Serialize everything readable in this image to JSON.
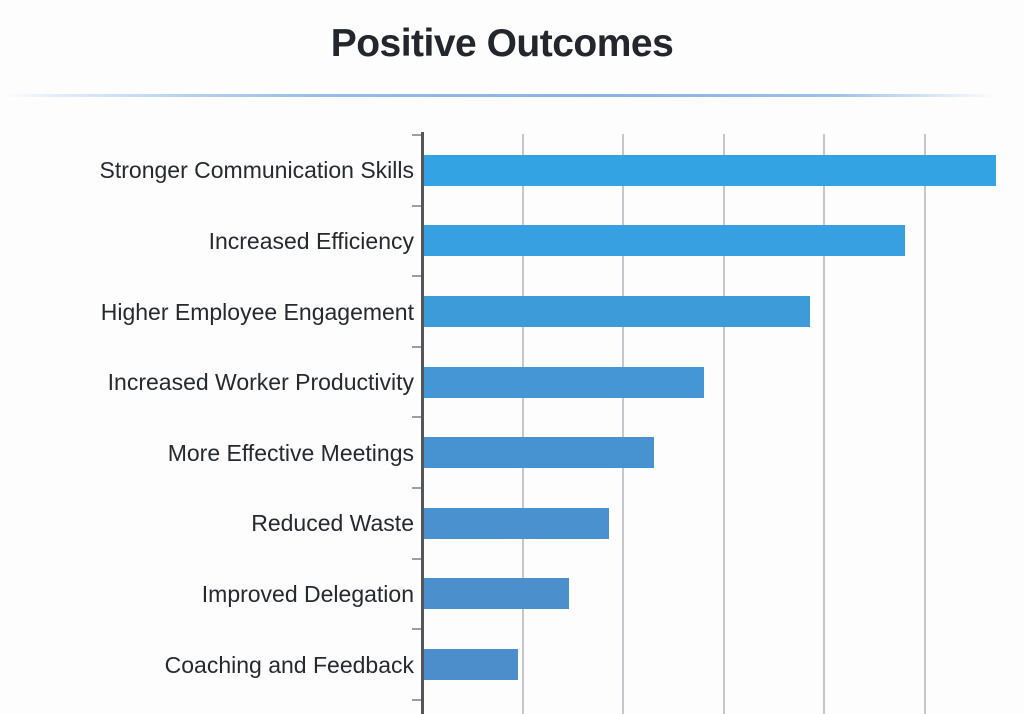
{
  "header": {
    "title": "Positive Outcomes"
  },
  "chart_data": {
    "type": "bar",
    "orientation": "horizontal",
    "title": "Positive Outcomes",
    "categories": [
      "Stronger Communication Skills",
      "Increased Efficiency",
      "Higher Employee Engagement",
      "Increased Worker Productivity",
      "More Effective Meetings",
      "Reduced Waste",
      "Improved Delegation",
      "Coaching and Feedback"
    ],
    "values": [
      57,
      48,
      38.5,
      28,
      23,
      18.5,
      14.5,
      9.5
    ],
    "xlim": [
      0,
      60
    ],
    "gridline_interval": 10,
    "axis_tick_labels_visible": false,
    "legend": "none",
    "grid": "vertical-only",
    "bar_colors": [
      "#34a3e4",
      "#37a0e0",
      "#3e9bda",
      "#4496d4",
      "#4793d2",
      "#4991cf",
      "#4b90cd",
      "#4c8ecb"
    ],
    "axis_color": "#54565c",
    "gridline_color": "#c5c7ca",
    "label_color": "#26292e",
    "title_color": "#23262d",
    "divider_color": "#8cb6e6"
  }
}
